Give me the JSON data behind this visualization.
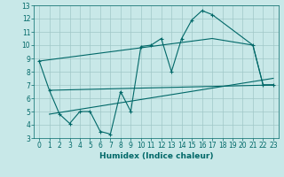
{
  "xlabel": "Humidex (Indice chaleur)",
  "bg_color": "#c8e8e8",
  "grid_color": "#a0c8c8",
  "line_color": "#006868",
  "xlim": [
    -0.5,
    23.5
  ],
  "ylim": [
    3,
    13
  ],
  "xticks": [
    0,
    1,
    2,
    3,
    4,
    5,
    6,
    7,
    8,
    9,
    10,
    11,
    12,
    13,
    14,
    15,
    16,
    17,
    18,
    19,
    20,
    21,
    22,
    23
  ],
  "yticks": [
    3,
    4,
    5,
    6,
    7,
    8,
    9,
    10,
    11,
    12,
    13
  ],
  "zigzag_x": [
    0,
    1,
    2,
    3,
    4,
    5,
    6,
    7,
    8,
    9,
    10,
    11,
    12,
    13,
    14,
    15,
    16,
    17,
    21,
    22,
    23
  ],
  "zigzag_y": [
    8.8,
    6.6,
    4.8,
    4.1,
    5.0,
    5.0,
    3.5,
    3.3,
    6.5,
    5.0,
    9.9,
    10.0,
    10.5,
    8.0,
    10.5,
    11.9,
    12.6,
    12.3,
    10.0,
    7.0,
    7.0
  ],
  "line1_x": [
    1,
    23
  ],
  "line1_y": [
    6.6,
    7.0
  ],
  "line2_x": [
    1,
    23
  ],
  "line2_y": [
    4.8,
    7.5
  ],
  "line3_x": [
    0,
    17,
    21,
    22,
    23
  ],
  "line3_y": [
    8.8,
    10.5,
    10.0,
    7.0,
    7.0
  ],
  "tick_fontsize": 5.5,
  "xlabel_fontsize": 6.5,
  "linewidth": 0.8,
  "marker_size": 3
}
